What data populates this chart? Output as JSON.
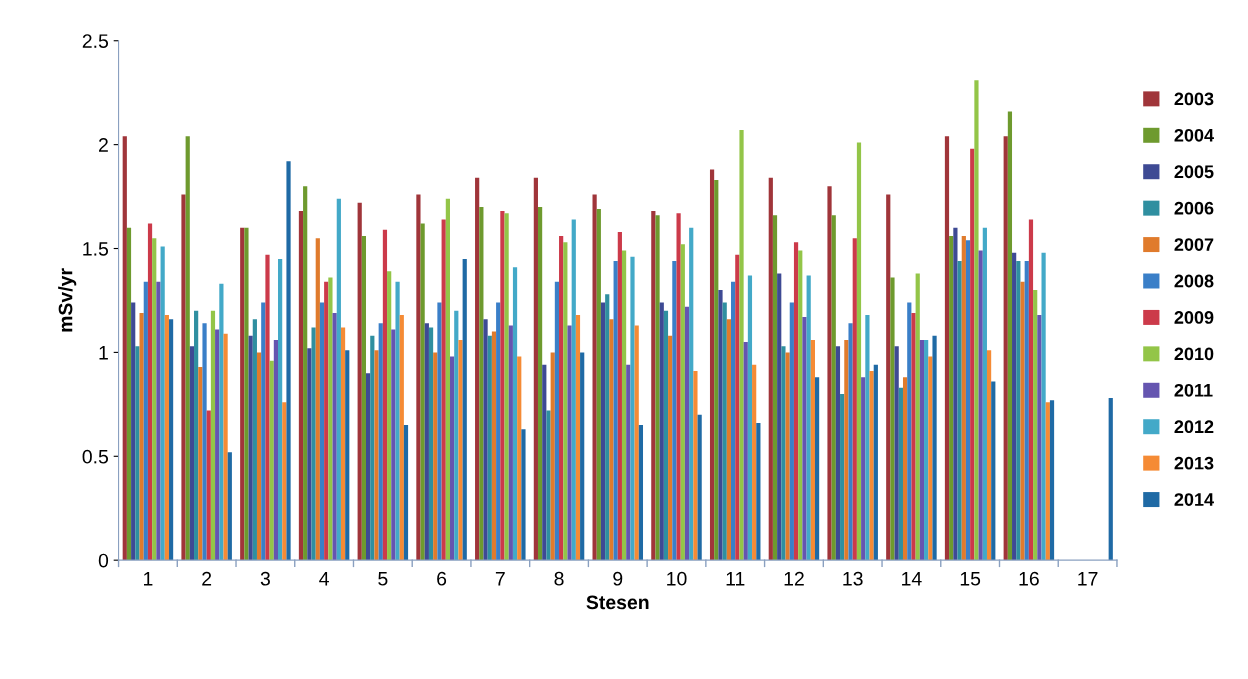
{
  "chart_data": {
    "type": "bar",
    "xlabel": "Stesen",
    "ylabel": "mSv/yr",
    "categories": [
      "1",
      "2",
      "3",
      "4",
      "5",
      "6",
      "7",
      "8",
      "9",
      "10",
      "11",
      "12",
      "13",
      "14",
      "15",
      "16",
      "17"
    ],
    "ylim": [
      0,
      2.5
    ],
    "yticks": [
      0,
      0.5,
      1,
      1.5,
      2,
      2.5
    ],
    "grid": false,
    "legend": "right",
    "series": [
      {
        "name": "2003",
        "color": "#a0353a",
        "values": [
          2.04,
          1.76,
          1.6,
          1.68,
          1.72,
          1.76,
          1.84,
          1.84,
          1.76,
          1.68,
          1.88,
          1.84,
          1.8,
          1.76,
          2.04,
          2.04,
          null
        ]
      },
      {
        "name": "2004",
        "color": "#6e9a2e",
        "values": [
          1.6,
          2.04,
          1.6,
          1.8,
          1.56,
          1.62,
          1.7,
          1.7,
          1.69,
          1.66,
          1.83,
          1.66,
          1.66,
          1.36,
          1.56,
          2.16,
          null
        ]
      },
      {
        "name": "2005",
        "color": "#3e4a94",
        "values": [
          1.24,
          1.03,
          1.08,
          1.02,
          0.9,
          1.14,
          1.16,
          0.94,
          1.24,
          1.24,
          1.3,
          1.38,
          1.03,
          1.03,
          1.6,
          1.48,
          null
        ]
      },
      {
        "name": "2006",
        "color": "#2f8fa0",
        "values": [
          1.03,
          1.2,
          1.16,
          1.12,
          1.08,
          1.12,
          1.08,
          0.72,
          1.28,
          1.2,
          1.24,
          1.03,
          0.8,
          0.83,
          1.44,
          1.44,
          null
        ]
      },
      {
        "name": "2007",
        "color": "#e07b2c",
        "values": [
          1.19,
          0.93,
          1.0,
          1.55,
          1.01,
          1.0,
          1.1,
          1.0,
          1.16,
          1.08,
          1.16,
          1.0,
          1.06,
          0.88,
          1.56,
          1.34,
          null
        ]
      },
      {
        "name": "2008",
        "color": "#3a7fc8",
        "values": [
          1.34,
          1.14,
          1.24,
          1.24,
          1.14,
          1.24,
          1.24,
          1.34,
          1.44,
          1.44,
          1.34,
          1.24,
          1.14,
          1.24,
          1.54,
          1.44,
          null
        ]
      },
      {
        "name": "2009",
        "color": "#cc3a4a",
        "values": [
          1.62,
          0.72,
          1.47,
          1.34,
          1.59,
          1.64,
          1.68,
          1.56,
          1.58,
          1.67,
          1.47,
          1.53,
          1.55,
          1.19,
          1.98,
          1.64,
          null
        ]
      },
      {
        "name": "2010",
        "color": "#93c548",
        "values": [
          1.55,
          1.2,
          0.96,
          1.36,
          1.39,
          1.74,
          1.67,
          1.53,
          1.49,
          1.52,
          2.07,
          1.49,
          2.01,
          1.38,
          2.31,
          1.3,
          null
        ]
      },
      {
        "name": "2011",
        "color": "#6555b0",
        "values": [
          1.34,
          1.11,
          1.06,
          1.19,
          1.11,
          0.98,
          1.13,
          1.13,
          0.94,
          1.22,
          1.05,
          1.17,
          0.88,
          1.06,
          1.49,
          1.18,
          null
        ]
      },
      {
        "name": "2012",
        "color": "#43a9c8",
        "values": [
          1.51,
          1.33,
          1.45,
          1.74,
          1.34,
          1.2,
          1.41,
          1.64,
          1.46,
          1.6,
          1.37,
          1.37,
          1.18,
          1.06,
          1.6,
          1.48,
          null
        ]
      },
      {
        "name": "2013",
        "color": "#f58b35",
        "values": [
          1.18,
          1.09,
          0.76,
          1.12,
          1.18,
          1.06,
          0.98,
          1.18,
          1.13,
          0.91,
          0.94,
          1.06,
          0.91,
          0.98,
          1.01,
          0.76,
          null
        ]
      },
      {
        "name": "2014",
        "color": "#1f6aa5",
        "values": [
          1.16,
          0.52,
          1.92,
          1.01,
          0.65,
          1.45,
          0.63,
          1.0,
          0.65,
          0.7,
          0.66,
          0.88,
          0.94,
          1.08,
          0.86,
          0.77,
          0.78
        ]
      }
    ]
  }
}
